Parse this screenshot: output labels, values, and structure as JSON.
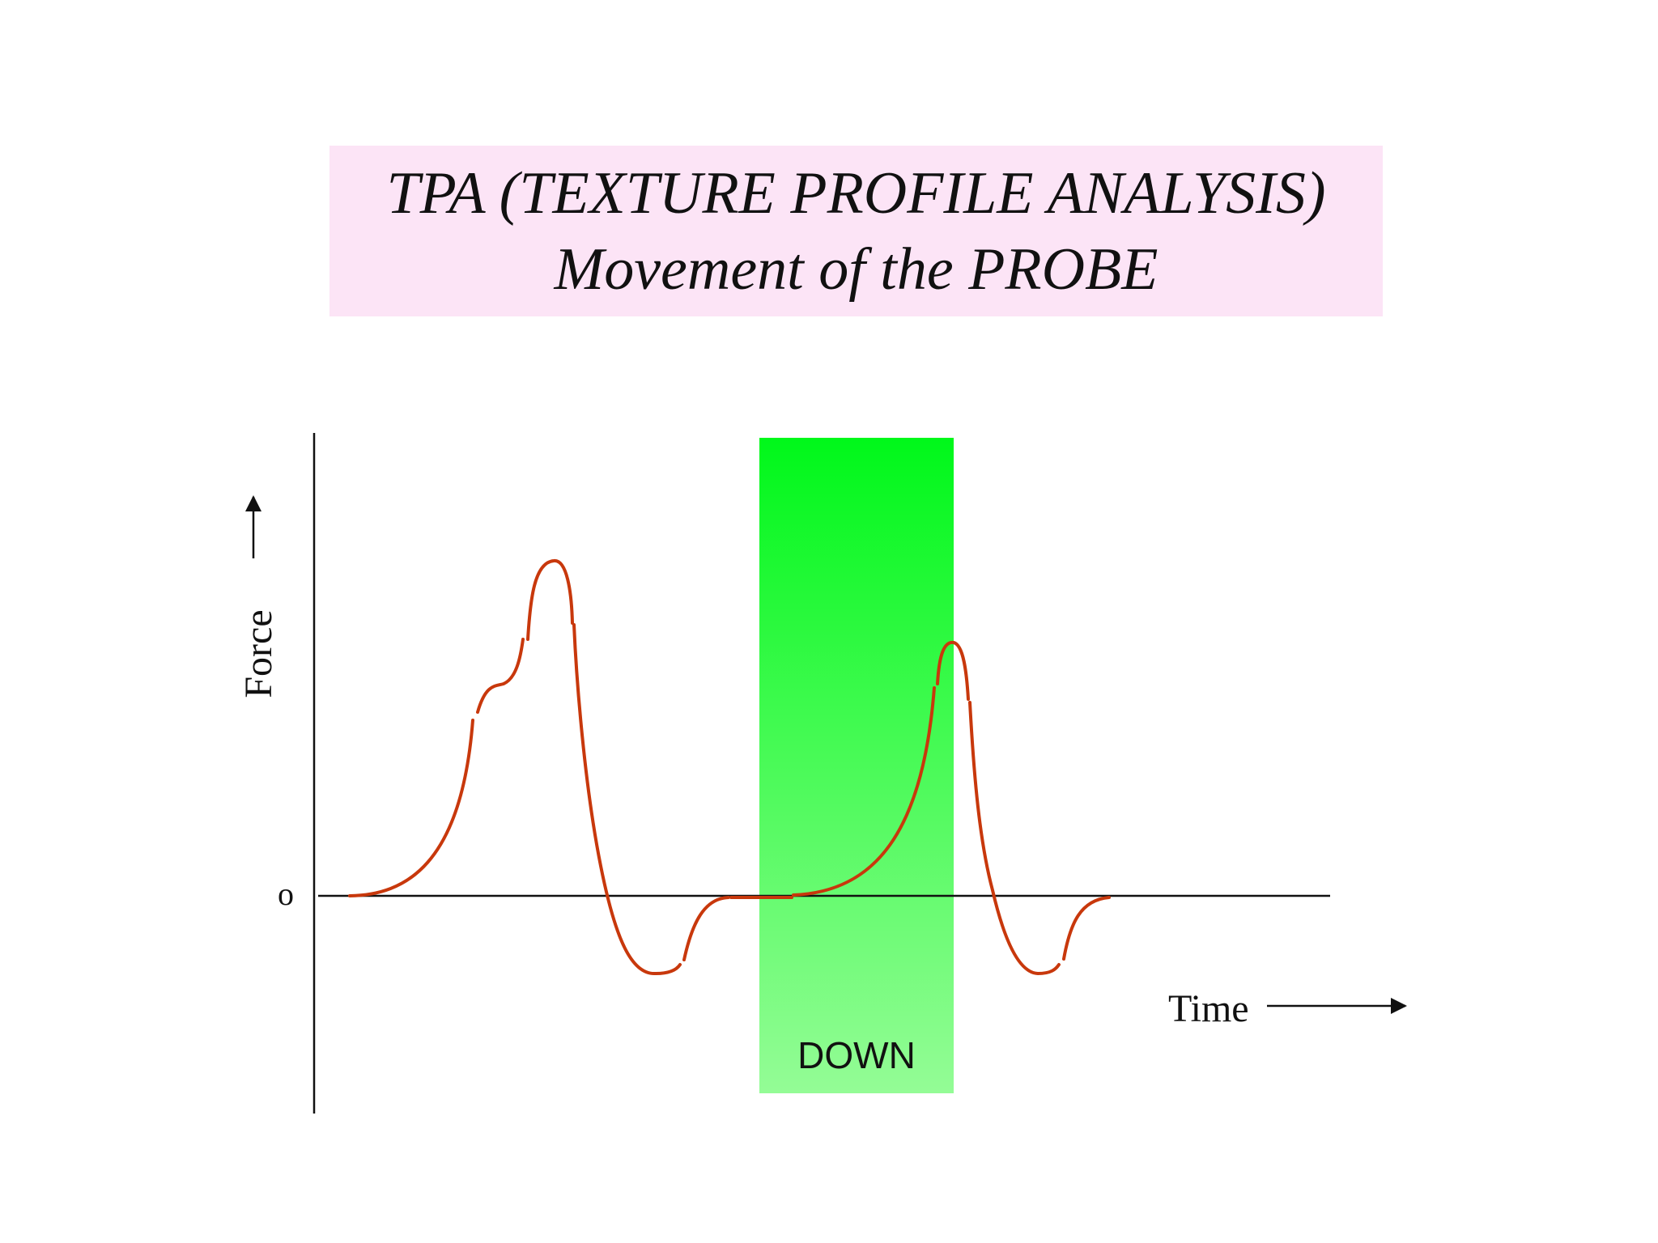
{
  "title": {
    "line1": "TPA (TEXTURE PROFILE ANALYSIS)",
    "line2": "Movement of the PROBE"
  },
  "axes": {
    "y_label": "Force",
    "x_label": "Time",
    "origin_label": "o"
  },
  "phase": {
    "label": "DOWN",
    "color_top": "#00f81a",
    "color_bottom": "#94fc96"
  },
  "colors": {
    "curve": "#c8380c",
    "axis": "#111111",
    "title_bg": "#fce4f6"
  }
}
